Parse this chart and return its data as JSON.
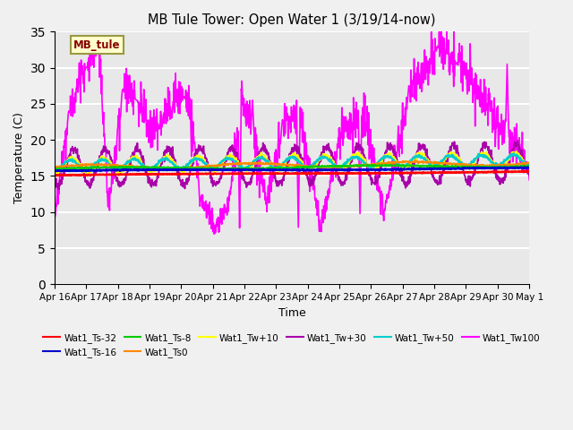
{
  "title": "MB Tule Tower: Open Water 1 (3/19/14-now)",
  "xlabel": "Time",
  "ylabel": "Temperature (C)",
  "ylim": [
    0,
    35
  ],
  "yticks": [
    0,
    5,
    10,
    15,
    20,
    25,
    30,
    35
  ],
  "plot_bg_color": "#e8e8e8",
  "fig_bg_color": "#f0f0f0",
  "x_labels": [
    "Apr 16",
    "Apr 17",
    "Apr 18",
    "Apr 19",
    "Apr 20",
    "Apr 21",
    "Apr 22",
    "Apr 23",
    "Apr 24",
    "Apr 25",
    "Apr 26",
    "Apr 27",
    "Apr 28",
    "Apr 29",
    "Apr 30",
    "May 1"
  ],
  "colors": {
    "Wat1_Ts-32": "#ff0000",
    "Wat1_Ts-16": "#0000cc",
    "Wat1_Ts-8": "#00cc00",
    "Wat1_Ts0": "#ff8800",
    "Wat1_Tw+10": "#ffff00",
    "Wat1_Tw+30": "#aa00aa",
    "Wat1_Tw+50": "#00cccc",
    "Wat1_Tw100": "#ff00ff"
  },
  "legend_order": [
    "Wat1_Ts-32",
    "Wat1_Ts-16",
    "Wat1_Ts-8",
    "Wat1_Ts0",
    "Wat1_Tw+10",
    "Wat1_Tw+30",
    "Wat1_Tw+50",
    "Wat1_Tw100"
  ],
  "annotation_text": "MB_tule",
  "tw100_peaks": [
    9.2,
    24.5,
    30.0,
    34.0,
    10.5,
    27.5,
    25.5,
    21.5,
    23.0,
    26.0,
    25.5,
    10.8,
    7.8,
    11.0,
    25.5,
    20.5,
    11.2,
    23.0,
    22.5,
    8.0,
    21.5,
    22.8,
    10.0,
    27.5,
    33.0,
    30.5,
    19.0
  ],
  "tw100_times": [
    0.0,
    0.5,
    1.0,
    1.4,
    1.7,
    2.2,
    2.6,
    3.0,
    3.4,
    3.8,
    4.2,
    4.7,
    5.1,
    5.5,
    5.9,
    6.3,
    6.7,
    7.3,
    7.8,
    8.4,
    9.1,
    9.8,
    10.4,
    11.3,
    12.2,
    12.8,
    14.5
  ]
}
